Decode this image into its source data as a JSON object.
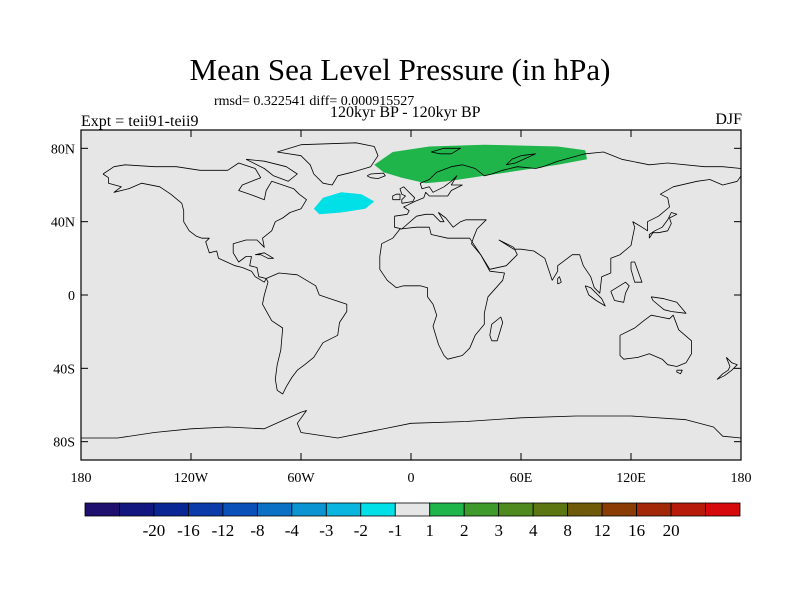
{
  "title": "Mean Sea Level Pressure (in hPa)",
  "stats_text": "rmsd= 0.322541 diff= 0.000915527",
  "period_text": "120kyr BP - 120kyr BP",
  "experiment_text": "Expt = teii91-teii9",
  "season_text": "DJF",
  "map": {
    "lat_ticks": [
      {
        "value": 80,
        "label": "80N"
      },
      {
        "value": 40,
        "label": "40N"
      },
      {
        "value": 0,
        "label": "0"
      },
      {
        "value": -40,
        "label": "40S"
      },
      {
        "value": -80,
        "label": "80S"
      }
    ],
    "lon_ticks": [
      {
        "value": -180,
        "label": "180"
      },
      {
        "value": -120,
        "label": "120W"
      },
      {
        "value": -60,
        "label": "60W"
      },
      {
        "value": 0,
        "label": "0"
      },
      {
        "value": 60,
        "label": "60E"
      },
      {
        "value": 120,
        "label": "120E"
      },
      {
        "value": 180,
        "label": "180"
      }
    ],
    "lon_range": [
      -180,
      180
    ],
    "lat_range": [
      -90,
      90
    ],
    "background_color": "#e6e6e6"
  },
  "anomalies": [
    {
      "name": "north-atlantic-negative",
      "category": "-2 to -1",
      "color": "#00e0e6",
      "outline": [
        [
          -53,
          47
        ],
        [
          -48,
          53
        ],
        [
          -38,
          56
        ],
        [
          -27,
          55
        ],
        [
          -20,
          51
        ],
        [
          -25,
          47
        ],
        [
          -38,
          45
        ],
        [
          -50,
          44
        ],
        [
          -53,
          47
        ]
      ]
    },
    {
      "name": "eurasia-arctic-positive",
      "category": "1 to 2",
      "color": "#1fb54a",
      "outline": [
        [
          -20,
          71
        ],
        [
          -10,
          78
        ],
        [
          10,
          81
        ],
        [
          40,
          82
        ],
        [
          80,
          81
        ],
        [
          95,
          79
        ],
        [
          96,
          74
        ],
        [
          80,
          71
        ],
        [
          60,
          68
        ],
        [
          40,
          65
        ],
        [
          20,
          62
        ],
        [
          8,
          61
        ],
        [
          -5,
          64
        ],
        [
          -15,
          67
        ],
        [
          -20,
          71
        ]
      ]
    }
  ],
  "colorbar": {
    "colors": [
      "#1f0f6e",
      "#12167f",
      "#0a2694",
      "#0a3ba8",
      "#0a50b9",
      "#0a71c4",
      "#0a95d2",
      "#0ab5de",
      "#00e0e6",
      "#e6e6e6",
      "#1fb54a",
      "#3e9a2a",
      "#4f8a1e",
      "#5c7712",
      "#6e5a08",
      "#8a3c04",
      "#a22808",
      "#b81a0a",
      "#d60a0a"
    ],
    "labels": [
      "-20",
      "-16",
      "-12",
      "-8",
      "-4",
      "-3",
      "-2",
      "-1",
      "1",
      "2",
      "3",
      "4",
      "8",
      "12",
      "16",
      "20"
    ]
  }
}
